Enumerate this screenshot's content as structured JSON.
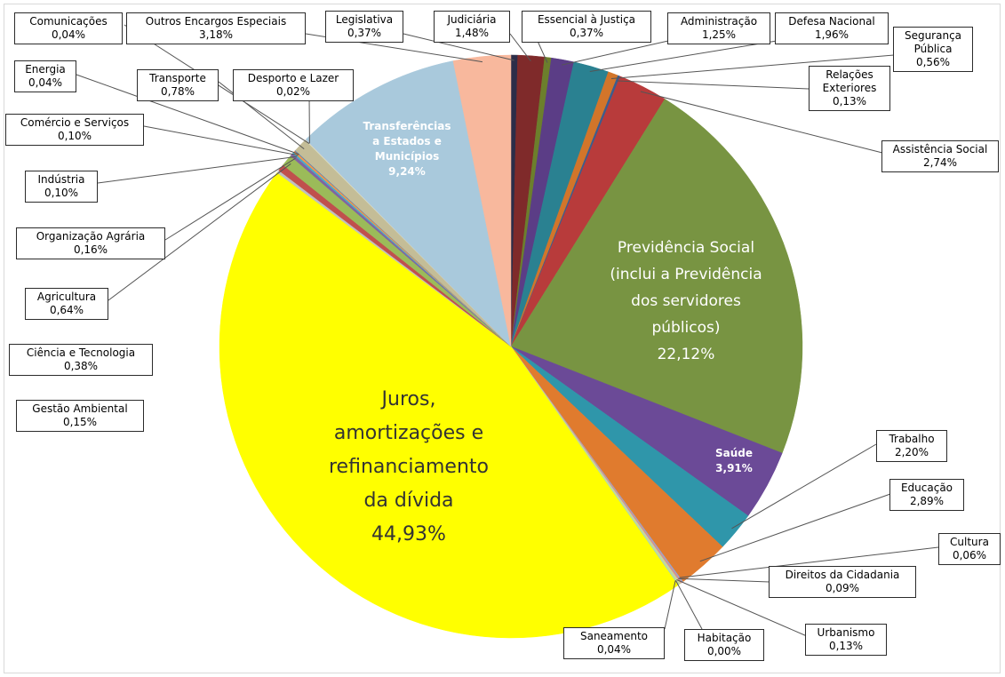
{
  "chart_data": {
    "type": "pie",
    "start_angle": -90,
    "direction": "clockwise",
    "slices": [
      {
        "label": "Legislativa",
        "value": 0.37,
        "display": "0,37%",
        "color": "#2c2d49"
      },
      {
        "label": "Judiciária",
        "value": 1.48,
        "display": "1,48%",
        "color": "#7f2a2a"
      },
      {
        "label": "Essencial à Justiça",
        "value": 0.37,
        "display": "0,37%",
        "color": "#6c7f2c"
      },
      {
        "label": "Administração",
        "value": 1.25,
        "display": "1,25%",
        "color": "#5b3d86"
      },
      {
        "label": "Defesa Nacional",
        "value": 1.96,
        "display": "1,96%",
        "color": "#2a8191"
      },
      {
        "label": "Segurança Pública",
        "value": 0.56,
        "display": "0,56%",
        "color": "#d2752a"
      },
      {
        "label": "Relações Exteriores",
        "value": 0.13,
        "display": "0,13%",
        "color": "#3b5d8f"
      },
      {
        "label": "Assistência Social",
        "value": 2.74,
        "display": "2,74%",
        "color": "#b83b3b"
      },
      {
        "label": "Previdência Social (inclui a Previdência dos servidores públicos)",
        "value": 22.12,
        "display": "22,12%",
        "color": "#789442"
      },
      {
        "label": "Saúde",
        "value": 3.91,
        "display": "3,91%",
        "color": "#6b4a97"
      },
      {
        "label": "Trabalho",
        "value": 2.2,
        "display": "2,20%",
        "color": "#2f96aa"
      },
      {
        "label": "Educação",
        "value": 2.89,
        "display": "2,89%",
        "color": "#e07b2e"
      },
      {
        "label": "Cultura",
        "value": 0.06,
        "display": "0,06%",
        "color": "#8fa9d8"
      },
      {
        "label": "Direitos da Cidadania",
        "value": 0.09,
        "display": "0,09%",
        "color": "#d98f8f"
      },
      {
        "label": "Urbanismo",
        "value": 0.13,
        "display": "0,13%",
        "color": "#c7d89a"
      },
      {
        "label": "Habitação",
        "value": 0.0,
        "display": "0,00%",
        "color": "#b3a4cf"
      },
      {
        "label": "Saneamento",
        "value": 0.04,
        "display": "0,04%",
        "color": "#92cddc"
      },
      {
        "label": "Juros, amortizações e refinanciamento da dívida",
        "value": 44.93,
        "display": "44,93%",
        "color": "#ffff00"
      },
      {
        "label": "Gestão Ambiental",
        "value": 0.15,
        "display": "0,15%",
        "color": "#bfbfbf"
      },
      {
        "label": "Ciência e Tecnologia",
        "value": 0.38,
        "display": "0,38%",
        "color": "#c0504d"
      },
      {
        "label": "Agricultura",
        "value": 0.64,
        "display": "0,64%",
        "color": "#9bbb59"
      },
      {
        "label": "Organização Agrária",
        "value": 0.16,
        "display": "0,16%",
        "color": "#8064a2"
      },
      {
        "label": "Indústria",
        "value": 0.1,
        "display": "0,10%",
        "color": "#4bacc6"
      },
      {
        "label": "Comércio e Serviços",
        "value": 0.1,
        "display": "0,10%",
        "color": "#f79646"
      },
      {
        "label": "Energia",
        "value": 0.04,
        "display": "0,04%",
        "color": "#4f81bd"
      },
      {
        "label": "Transporte",
        "value": 0.78,
        "display": "0,78%",
        "color": "#c4bd97"
      },
      {
        "label": "Comunicações",
        "value": 0.04,
        "display": "0,04%",
        "color": "#d7e4bd"
      },
      {
        "label": "Desporto e Lazer",
        "value": 0.02,
        "display": "0,02%",
        "color": "#ccc1da"
      },
      {
        "label": "Transferências a Estados e Municípios",
        "value": 9.24,
        "display": "9,24%",
        "color": "#a9c9dc"
      },
      {
        "label": "Outros Encargos Especiais",
        "value": 3.18,
        "display": "3,18%",
        "color": "#f8b89d"
      }
    ]
  },
  "inner_labels": {
    "previdencia": [
      "Previdência Social",
      "(inclui a Previdência",
      "dos servidores",
      "públicos)",
      "22,12%"
    ],
    "juros": [
      "Juros,",
      "amortizações e",
      "refinanciamento",
      "da dívida",
      "44,93%"
    ],
    "transferencias": [
      "Transferências",
      "a Estados e",
      "Municípios",
      "9,24%"
    ],
    "saude": [
      "Saúde",
      "3,91%"
    ]
  },
  "callouts": {
    "comunicacoes": [
      "Comunicações",
      "0,04%"
    ],
    "outros": [
      "Outros Encargos Especiais",
      "3,18%"
    ],
    "legislativa": [
      "Legislativa",
      "0,37%"
    ],
    "judiciaria": [
      "Judiciária",
      "1,48%"
    ],
    "essencial": [
      "Essencial à Justiça",
      "0,37%"
    ],
    "administracao": [
      "Administração",
      "1,25%"
    ],
    "defesa": [
      "Defesa Nacional",
      "1,96%"
    ],
    "seguranca": [
      "Segurança",
      "Pública",
      "0,56%"
    ],
    "relacoes": [
      "Relações",
      "Exteriores",
      "0,13%"
    ],
    "assistencia": [
      "Assistência Social",
      "2,74%"
    ],
    "energia": [
      "Energia",
      "0,04%"
    ],
    "transporte": [
      "Transporte",
      "0,78%"
    ],
    "desporto": [
      "Desporto e Lazer",
      "0,02%"
    ],
    "comercio": [
      "Comércio e Serviços",
      "0,10%"
    ],
    "industria": [
      "Indústria",
      "0,10%"
    ],
    "organizacao": [
      "Organização Agrária",
      "0,16%"
    ],
    "agricultura": [
      "Agricultura",
      "0,64%"
    ],
    "ciencia": [
      "Ciência e Tecnologia",
      "0,38%"
    ],
    "gestao": [
      "Gestão Ambiental",
      "0,15%"
    ],
    "trabalho": [
      "Trabalho",
      "2,20%"
    ],
    "educacao": [
      "Educação",
      "2,89%"
    ],
    "cultura": [
      "Cultura",
      "0,06%"
    ],
    "direitos": [
      "Direitos da Cidadania",
      "0,09%"
    ],
    "urbanismo": [
      "Urbanismo",
      "0,13%"
    ],
    "saneamento": [
      "Saneamento",
      "0,04%"
    ],
    "habitacao": [
      "Habitação",
      "0,00%"
    ]
  }
}
